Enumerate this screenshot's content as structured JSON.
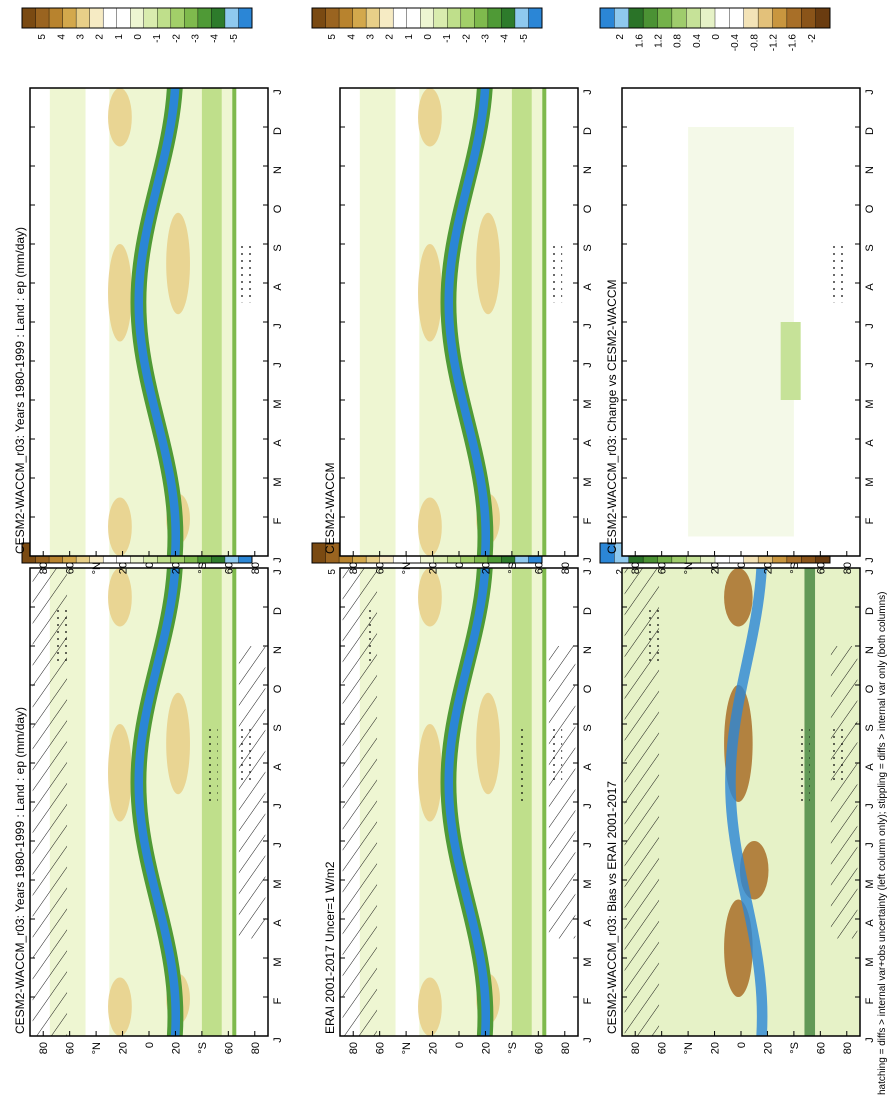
{
  "figure": {
    "footnote": "hatching = diffs > internal var+obs uncertainty (left column only); stippling = diffs > internal var only (both columns)"
  },
  "chart_data": [
    {
      "type": "heatmap",
      "id": "p1",
      "title": "CESM2-WACCM_r03: Years 1980-1999 : Land : ep (mm/day)",
      "months": [
        "J",
        "F",
        "M",
        "A",
        "M",
        "J",
        "J",
        "A",
        "S",
        "O",
        "N",
        "D",
        "J"
      ],
      "lat_ticks": [
        "80",
        "60",
        "°N",
        "20",
        "0",
        "20",
        "°S",
        "60",
        "80"
      ],
      "colorbar": [
        "5",
        "4",
        "3",
        "2",
        "1",
        "0",
        "-1",
        "-2",
        "-3",
        "-4",
        "-5"
      ],
      "hatching": true,
      "stippling": true,
      "kind": "field"
    },
    {
      "type": "heatmap",
      "id": "p2",
      "title": "CESM2-WACCM_r03: Years 1980-1999 : Land : ep (mm/day)",
      "months": [
        "J",
        "F",
        "M",
        "A",
        "M",
        "J",
        "J",
        "A",
        "S",
        "O",
        "N",
        "D",
        "J"
      ],
      "lat_ticks": [
        "80",
        "60",
        "°N",
        "20",
        "0",
        "20",
        "°S",
        "60",
        "80"
      ],
      "colorbar": [
        "5",
        "4",
        "3",
        "2",
        "1",
        "0",
        "-1",
        "-2",
        "-3",
        "-4",
        "-5"
      ],
      "hatching": false,
      "stippling": true,
      "kind": "field"
    },
    {
      "type": "heatmap",
      "id": "p3",
      "title": "ERAI 2001-2017 Uncer=1 W/m2",
      "months": [
        "J",
        "F",
        "M",
        "A",
        "M",
        "J",
        "J",
        "A",
        "S",
        "O",
        "N",
        "D",
        "J"
      ],
      "lat_ticks": [
        "80",
        "60",
        "°N",
        "20",
        "0",
        "20",
        "°S",
        "60",
        "80"
      ],
      "colorbar": [
        "5",
        "4",
        "3",
        "2",
        "1",
        "0",
        "-1",
        "-2",
        "-3",
        "-4",
        "-5"
      ],
      "hatching": true,
      "stippling": true,
      "kind": "field"
    },
    {
      "type": "heatmap",
      "id": "p4",
      "title": "CESM2-WACCM",
      "months": [
        "J",
        "F",
        "M",
        "A",
        "M",
        "J",
        "J",
        "A",
        "S",
        "O",
        "N",
        "D",
        "J"
      ],
      "lat_ticks": [
        "80",
        "60",
        "°N",
        "20",
        "0",
        "20",
        "°S",
        "60",
        "80"
      ],
      "colorbar": [
        "5",
        "4",
        "3",
        "2",
        "1",
        "0",
        "-1",
        "-2",
        "-3",
        "-4",
        "-5"
      ],
      "hatching": false,
      "stippling": true,
      "kind": "field"
    },
    {
      "type": "heatmap",
      "id": "p5",
      "title": "CESM2-WACCM_r03: Bias vs ERAI 2001-2017",
      "months": [
        "J",
        "F",
        "M",
        "A",
        "M",
        "J",
        "J",
        "A",
        "S",
        "O",
        "N",
        "D",
        "J"
      ],
      "lat_ticks": [
        "80",
        "60",
        "°N",
        "20",
        "0",
        "20",
        "°S",
        "60",
        "80"
      ],
      "colorbar": [
        "2",
        "1.6",
        "1.2",
        "0.8",
        "0.4",
        "0",
        "-0.4",
        "-0.8",
        "-1.2",
        "-1.6",
        "-2"
      ],
      "hatching": true,
      "stippling": true,
      "kind": "bias"
    },
    {
      "type": "heatmap",
      "id": "p6",
      "title": "CESM2-WACCM_r03: Change vs CESM2-WACCM",
      "months": [
        "J",
        "F",
        "M",
        "A",
        "M",
        "J",
        "J",
        "A",
        "S",
        "O",
        "N",
        "D",
        "J"
      ],
      "lat_ticks": [
        "80",
        "60",
        "°N",
        "20",
        "0",
        "20",
        "°S",
        "60",
        "80"
      ],
      "colorbar": [
        "2",
        "1.6",
        "1.2",
        "0.8",
        "0.4",
        "0",
        "-0.4",
        "-0.8",
        "-1.2",
        "-1.6",
        "-2"
      ],
      "hatching": false,
      "stippling": true,
      "kind": "change"
    }
  ]
}
